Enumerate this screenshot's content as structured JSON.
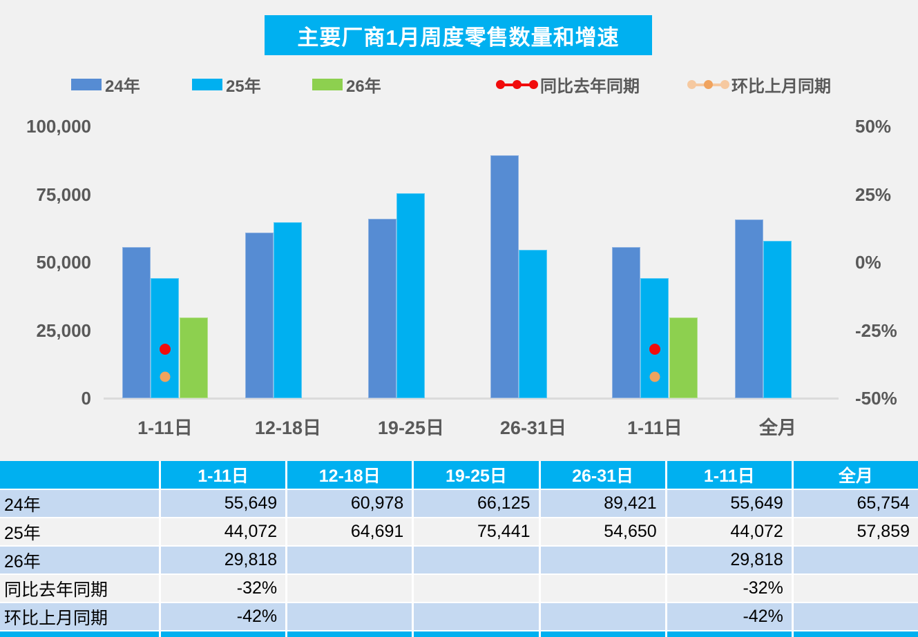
{
  "title": "主要厂商1月周度零售数量和增速",
  "colors": {
    "title_bg": "#00B0F0",
    "bar24": "#568CD3",
    "bar25": "#00B0F0",
    "bar26": "#8DD04F",
    "yoy_red": "#F10C0C",
    "mom_orange": "#F0A35E",
    "mom_orange_light": "#F6C9A0",
    "axis_text": "#595959",
    "axis_line": "#DBDBDB",
    "table_header_bg": "#00B0F0",
    "row_blue": "#C5D9F1",
    "row_gray": "#F2F2F2",
    "page_bg": "#F1F1F1"
  },
  "chart_data": {
    "type": "bar",
    "title": "主要厂商1月周度零售数量和增速",
    "categories": [
      "1-11日",
      "12-18日",
      "19-25日",
      "26-31日",
      "1-11日",
      "全月"
    ],
    "series": [
      {
        "name": "24年",
        "kind": "bar",
        "color_key": "bar24",
        "values": [
          55649,
          60978,
          66125,
          89421,
          55649,
          65754
        ]
      },
      {
        "name": "25年",
        "kind": "bar",
        "color_key": "bar25",
        "values": [
          44072,
          64691,
          75441,
          54650,
          44072,
          57859
        ]
      },
      {
        "name": "26年",
        "kind": "bar",
        "color_key": "bar26",
        "values": [
          29818,
          null,
          null,
          null,
          29818,
          null
        ]
      },
      {
        "name": "同比去年同期",
        "kind": "point",
        "color_key": "yoy_red",
        "dot_size": 16,
        "values_pct": [
          -32,
          null,
          null,
          null,
          -32,
          null
        ]
      },
      {
        "name": "环比上月同期",
        "kind": "point",
        "color_key": "mom_orange",
        "dot_size": 15,
        "values_pct": [
          -42,
          null,
          null,
          null,
          -42,
          null
        ]
      }
    ],
    "left_axis": {
      "ticks": [
        "100,000",
        "75,000",
        "50,000",
        "25,000",
        "0"
      ],
      "min": 0,
      "max": 100000
    },
    "right_axis": {
      "ticks": [
        "50%",
        "25%",
        "0%",
        "-25%",
        "-50%"
      ],
      "min": -50,
      "max": 50
    },
    "grid": false,
    "legend_position": "top",
    "legend": [
      {
        "label": "24年",
        "swatch": "bar",
        "color_key": "bar24"
      },
      {
        "label": "25年",
        "swatch": "bar",
        "color_key": "bar25"
      },
      {
        "label": "26年",
        "swatch": "bar",
        "color_key": "bar26"
      },
      {
        "label": "同比去年同期",
        "swatch": "dot-line",
        "dot_color_keys": [
          "yoy_red",
          "yoy_red",
          "yoy_red"
        ],
        "line_color_key": "yoy_red"
      },
      {
        "label": "环比上月同期",
        "swatch": "dot-line",
        "dot_color_keys": [
          "mom_orange_light",
          "mom_orange",
          "mom_orange_light"
        ],
        "line_color_key": "mom_orange_light"
      }
    ]
  },
  "table": {
    "header": [
      "",
      "1-11日",
      "12-18日",
      "19-25日",
      "26-31日",
      "1-11日",
      "全月"
    ],
    "rows": [
      {
        "label": "24年",
        "cells": [
          "55,649",
          "60,978",
          "66,125",
          "89,421",
          "55,649",
          "65,754"
        ]
      },
      {
        "label": "25年",
        "cells": [
          "44,072",
          "64,691",
          "75,441",
          "54,650",
          "44,072",
          "57,859"
        ]
      },
      {
        "label": "26年",
        "cells": [
          "29,818",
          "",
          "",
          "",
          "29,818",
          ""
        ]
      },
      {
        "label": "同比去年同期",
        "cells": [
          "-32%",
          "",
          "",
          "",
          "-32%",
          ""
        ]
      },
      {
        "label": "环比上月同期",
        "cells": [
          "-42%",
          "",
          "",
          "",
          "-42%",
          ""
        ]
      }
    ]
  }
}
